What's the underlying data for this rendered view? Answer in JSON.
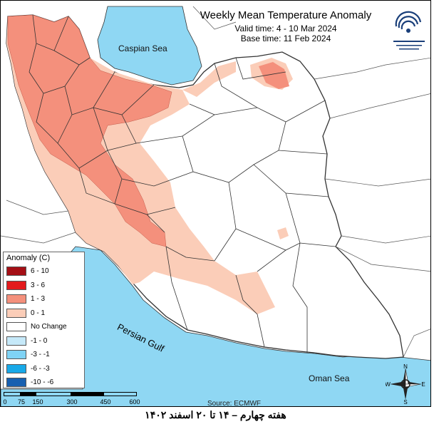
{
  "title": "Weekly Mean Temperature Anomaly",
  "valid_time": "Valid time: 4 - 10 Mar 2024",
  "base_time": "Base time: 11 Feb 2024",
  "seas": {
    "caspian": "Caspian Sea",
    "persian_gulf": "Persian Gulf",
    "oman": "Oman Sea"
  },
  "legend": {
    "title": "Anomaly (C)",
    "items": [
      {
        "label": "6 - 10",
        "color": "#a50f15"
      },
      {
        "label": "3 - 6",
        "color": "#e31a1c"
      },
      {
        "label": "1 - 3",
        "color": "#f4907c"
      },
      {
        "label": "0 - 1",
        "color": "#fbcdb8"
      },
      {
        "label": "No Change",
        "color": "#ffffff"
      },
      {
        "label": "-1 - 0",
        "color": "#c6e9f9"
      },
      {
        "label": "-3 - -1",
        "color": "#7fd3f5"
      },
      {
        "label": "-6 - -3",
        "color": "#18a9e8"
      },
      {
        "label": "-10 - -6",
        "color": "#1860b0"
      }
    ]
  },
  "scale_ticks": [
    "0",
    "75",
    "150",
    "300",
    "450",
    "600"
  ],
  "source": "Source: ECMWF",
  "compass": {
    "n": "N",
    "s": "S",
    "e": "E",
    "w": "W"
  },
  "caption": "هفته چهارم – ۱۴ تا ۲۰ اسفند ۱۴۰۲"
}
